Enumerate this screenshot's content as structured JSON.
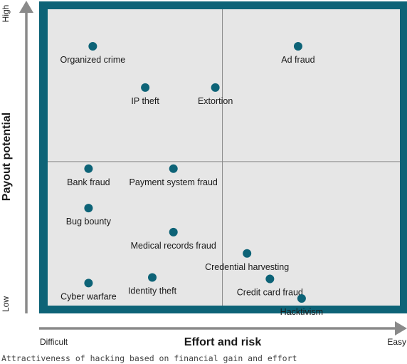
{
  "caption": "Attractiveness of hacking based on financial gain and effort",
  "colors": {
    "frame": "#0d6377",
    "plot_bg": "#e6e6e6",
    "point": "#0d6377",
    "axis_arrow": "#8a8a8a",
    "text": "#1a1a1a",
    "divider": "#8a8a8a"
  },
  "chart_data": {
    "type": "scatter",
    "title": "",
    "xlabel": "Effort and risk",
    "ylabel": "Payout potential",
    "x_tick_labels": {
      "min": "Difficult",
      "max": "Easy"
    },
    "y_tick_labels": {
      "min": "Low",
      "max": "High"
    },
    "xlim": [
      0,
      100
    ],
    "ylim": [
      0,
      100
    ],
    "quadrant_dividers": {
      "x": 49.6,
      "y": 48.6
    },
    "grid": false,
    "legend": "none",
    "points": [
      {
        "label": "Organized crime",
        "x": 12.8,
        "y": 87.5
      },
      {
        "label": "Ad fraud",
        "x": 71.1,
        "y": 87.5
      },
      {
        "label": "IP theft",
        "x": 27.7,
        "y": 73.6
      },
      {
        "label": "Extortion",
        "x": 47.6,
        "y": 73.6
      },
      {
        "label": "Bank fraud",
        "x": 11.6,
        "y": 46.2
      },
      {
        "label": "Payment system fraud",
        "x": 35.7,
        "y": 46.2
      },
      {
        "label": "Bug bounty",
        "x": 11.6,
        "y": 32.9
      },
      {
        "label": "Medical records fraud",
        "x": 35.7,
        "y": 24.8
      },
      {
        "label": "Credential harvesting",
        "x": 56.6,
        "y": 17.6
      },
      {
        "label": "Identity theft",
        "x": 29.7,
        "y": 9.5
      },
      {
        "label": "Credit card fraud",
        "x": 63.1,
        "y": 9.0
      },
      {
        "label": "Cyber warfare",
        "x": 11.6,
        "y": 7.6
      },
      {
        "label": "Hacktivism",
        "x": 72.1,
        "y": 2.4
      }
    ]
  }
}
